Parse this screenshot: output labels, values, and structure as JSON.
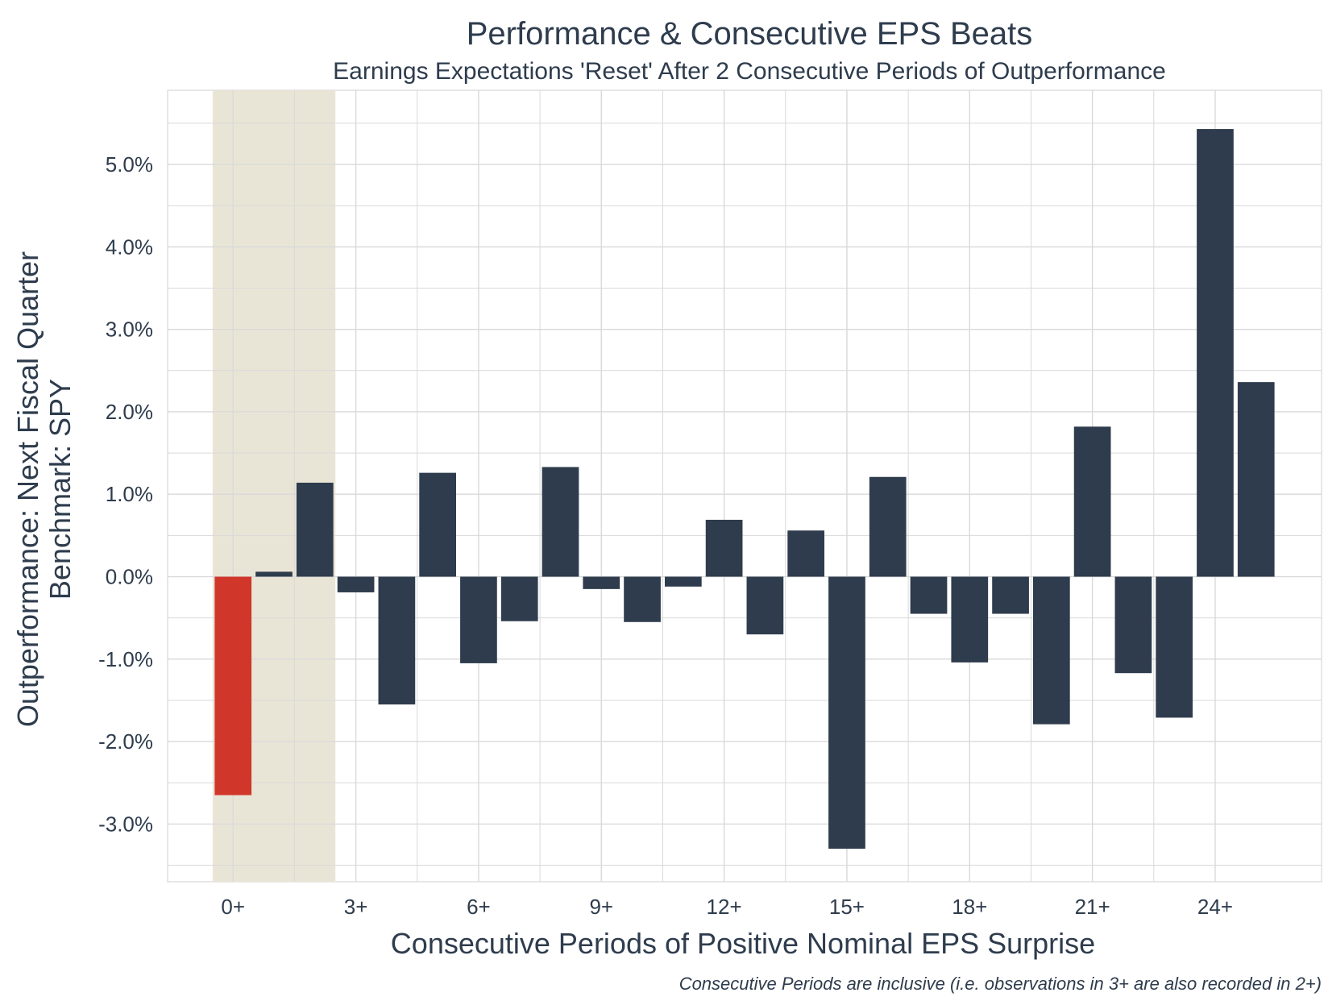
{
  "chart_data": {
    "type": "bar",
    "title": "Performance & Consecutive EPS Beats",
    "subtitle": "Earnings Expectations 'Reset' After 2 Consecutive Periods of Outperformance",
    "xlabel": "Consecutive Periods of Positive Nominal EPS Surprise",
    "ylabel_line1": "Outperformance: Next Fiscal Quarter",
    "ylabel_line2": "Benchmark: SPY",
    "caption": "Consecutive Periods are inclusive (i.e. observations in 3+ are also recorded in 2+)",
    "x": [
      0,
      1,
      2,
      3,
      4,
      5,
      6,
      7,
      8,
      9,
      10,
      11,
      12,
      13,
      14,
      15,
      16,
      17,
      18,
      19,
      20,
      21,
      22,
      23,
      24,
      25
    ],
    "values": [
      -2.65,
      0.06,
      1.14,
      -0.19,
      -1.55,
      1.26,
      -1.05,
      -0.54,
      1.33,
      -0.15,
      -0.55,
      -0.12,
      0.69,
      -0.7,
      0.56,
      -3.3,
      1.21,
      -0.45,
      -1.04,
      -0.45,
      -1.79,
      1.82,
      -1.17,
      -1.71,
      5.43,
      2.36
    ],
    "x_ticks": [
      0,
      3,
      6,
      9,
      12,
      15,
      18,
      21,
      24
    ],
    "x_tick_labels": [
      "0+",
      "3+",
      "6+",
      "9+",
      "12+",
      "15+",
      "18+",
      "21+",
      "24+"
    ],
    "y_ticks": [
      -3,
      -2,
      -1,
      0,
      1,
      2,
      3,
      4,
      5
    ],
    "y_tick_labels": [
      "-3.0%",
      "-2.0%",
      "-1.0%",
      "0.0%",
      "1.0%",
      "2.0%",
      "3.0%",
      "4.0%",
      "5.0%"
    ],
    "ylim": [
      -3.7,
      5.9
    ],
    "xlim": [
      -1.6,
      26.6
    ],
    "highlight_range": [
      -0.5,
      2.5
    ],
    "highlight_index": 0,
    "grid": true,
    "colors": {
      "bar": "#2e3c4d",
      "highlight_bar": "#d0372a",
      "highlight_band": "#e9e5d6",
      "grid": "#d9d9d9",
      "text": "#2e3c4d"
    }
  }
}
